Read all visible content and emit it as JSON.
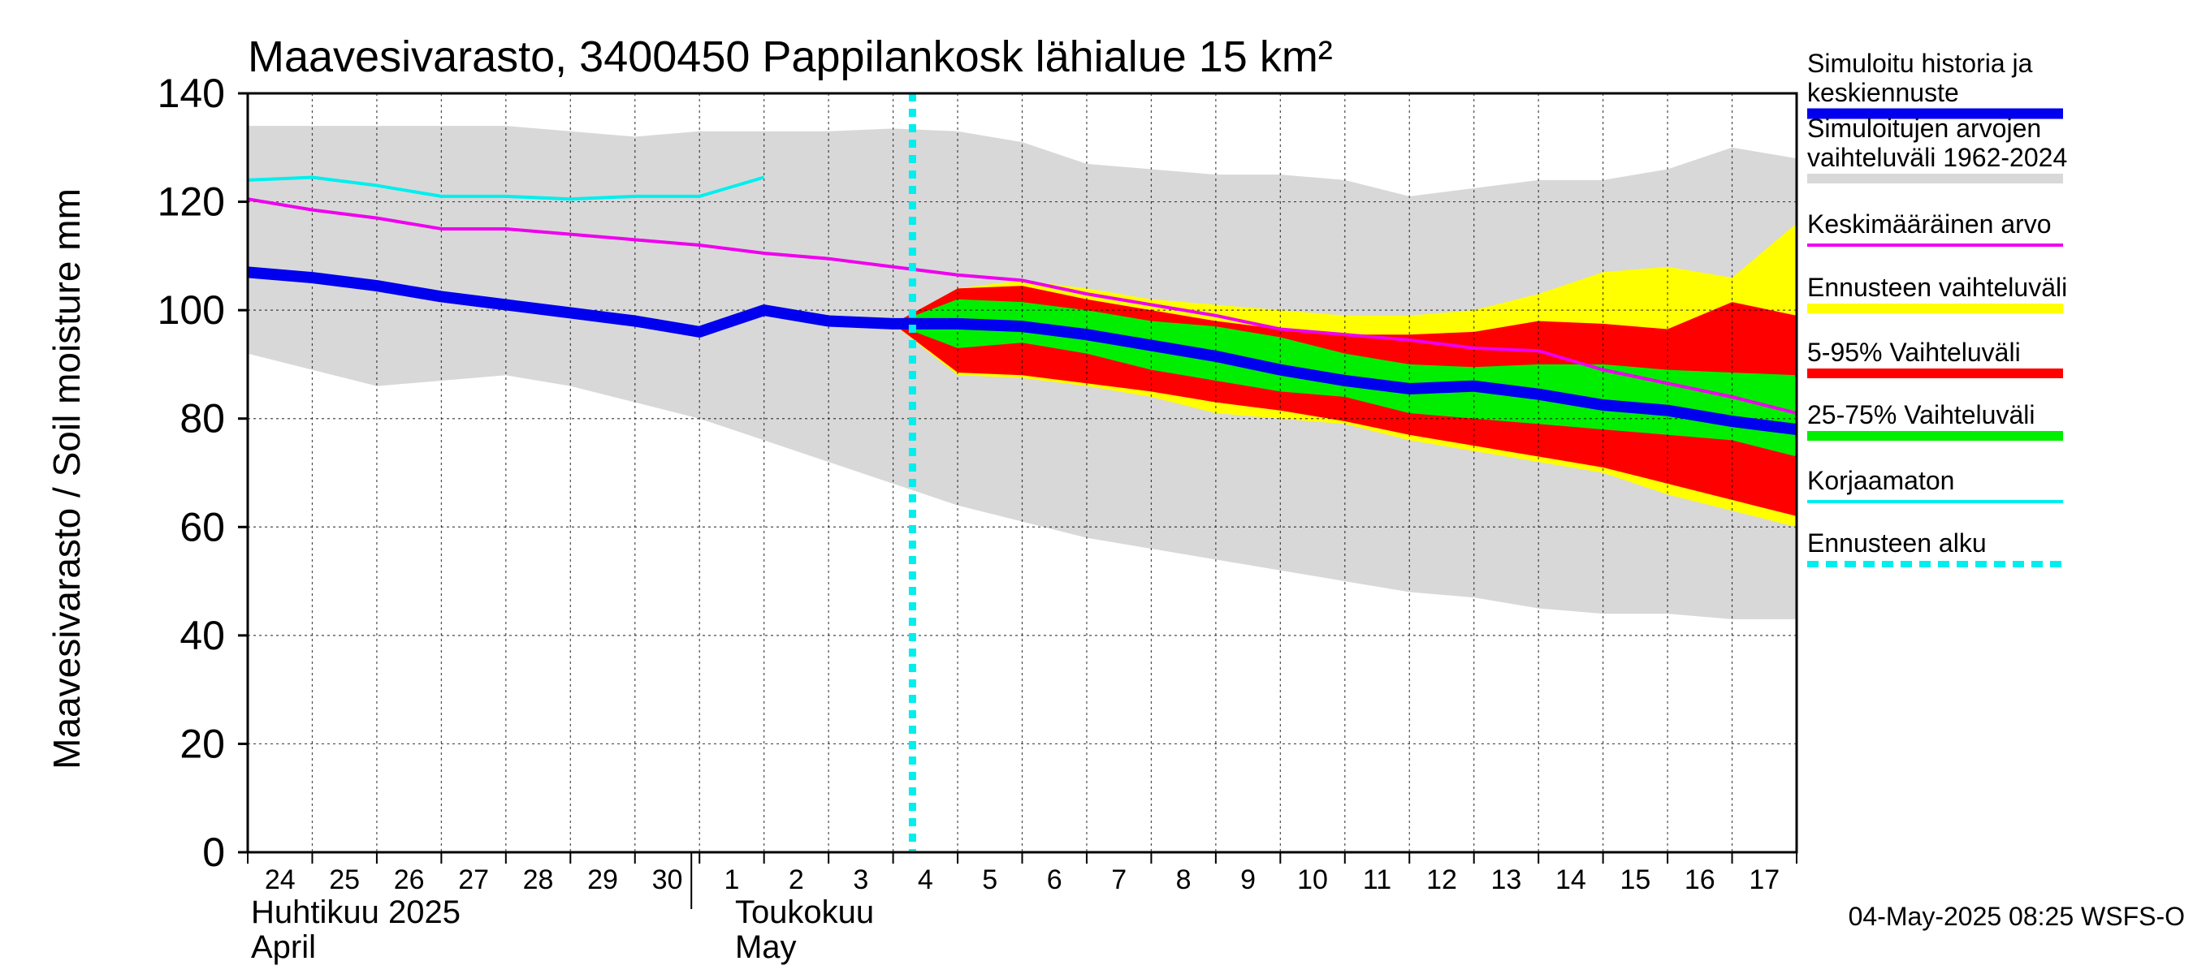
{
  "chart_data": {
    "type": "area",
    "title": "Maavesivarasto, 3400450 Pappilankosk lähialue 15 km²",
    "ylabel": "Maavesivarasto / Soil moisture   mm",
    "ylim": [
      0,
      140
    ],
    "yticks": [
      "0",
      "20",
      "40",
      "60",
      "80",
      "100",
      "120",
      "140"
    ],
    "x_days": [
      "24",
      "25",
      "26",
      "27",
      "28",
      "29",
      "30",
      "1",
      "2",
      "3",
      "4",
      "5",
      "6",
      "7",
      "8",
      "9",
      "10",
      "11",
      "12",
      "13",
      "14",
      "15",
      "16",
      "17"
    ],
    "months": [
      {
        "line1": "Huhtikuu  2025",
        "line2": "April",
        "start_index": 0
      },
      {
        "line1": "Toukokuu",
        "line2": "May",
        "start_index": 7.5
      }
    ],
    "forecast_start_index": 10.3,
    "colors": {
      "history_range": "#d8d8d8",
      "forecast_range": "#ffff00",
      "p5_95": "#ff0000",
      "p25_75": "#00ee00",
      "simulated": "#0000ee",
      "mean": "#ee00ee",
      "uncorrected": "#00eeee",
      "forecast_start": "#00eeee"
    },
    "series": {
      "history_range": {
        "x": [
          0,
          1,
          2,
          3,
          4,
          5,
          6,
          7,
          8,
          9,
          10,
          11,
          12,
          13,
          14,
          15,
          16,
          17,
          18,
          19,
          20,
          21,
          22,
          23,
          24
        ],
        "upper": [
          134,
          134,
          134,
          134,
          134,
          133,
          132,
          133,
          133,
          133,
          133.5,
          133,
          131,
          127,
          126,
          125,
          125,
          124,
          121,
          122.5,
          124,
          124,
          126,
          130,
          128
        ],
        "lower": [
          92,
          89,
          86,
          87,
          88,
          86,
          83,
          80,
          76,
          72,
          68,
          64,
          61,
          58,
          56,
          54,
          52,
          50,
          48,
          47,
          45,
          44,
          44,
          43,
          43
        ]
      },
      "forecast_range": {
        "x": [
          10,
          11,
          12,
          13,
          14,
          15,
          16,
          17,
          18,
          19,
          20,
          21,
          22,
          23,
          24
        ],
        "upper": [
          97.5,
          104,
          105.5,
          104,
          102,
          101,
          100,
          99,
          99,
          100,
          103,
          107,
          108,
          106,
          116
        ],
        "lower": [
          97.5,
          88,
          87.5,
          86,
          84,
          81,
          80,
          79,
          76,
          74,
          72,
          70,
          66,
          63,
          60
        ]
      },
      "p5_95": {
        "x": [
          10,
          11,
          12,
          13,
          14,
          15,
          16,
          17,
          18,
          19,
          20,
          21,
          22,
          23,
          24
        ],
        "upper": [
          97.5,
          104,
          104.5,
          102,
          100,
          98,
          96.5,
          95.5,
          95.5,
          96,
          98,
          97.5,
          96.5,
          101.5,
          99
        ],
        "lower": [
          97.5,
          88.5,
          88,
          86.5,
          85,
          83,
          81.5,
          79.5,
          77,
          75,
          73,
          71,
          68,
          65,
          62
        ]
      },
      "p25_75": {
        "x": [
          10,
          11,
          12,
          13,
          14,
          15,
          16,
          17,
          18,
          19,
          20,
          21,
          22,
          23,
          24
        ],
        "upper": [
          97.5,
          102,
          101.5,
          100,
          98,
          97,
          95,
          92,
          90,
          89.5,
          90,
          90,
          89,
          88.5,
          88
        ],
        "lower": [
          97.5,
          93,
          94,
          92,
          89,
          87,
          85,
          84,
          81,
          80,
          79,
          78,
          77,
          76,
          73
        ]
      },
      "simulated": {
        "x": [
          0,
          1,
          2,
          3,
          4,
          5,
          6,
          7,
          8,
          9,
          10,
          11,
          12,
          13,
          14,
          15,
          16,
          17,
          18,
          19,
          20,
          21,
          22,
          23,
          24
        ],
        "y": [
          107,
          106,
          104.5,
          102.5,
          101,
          99.5,
          98,
          96,
          100,
          98,
          97.5,
          97.5,
          97,
          95.5,
          93.5,
          91.5,
          89,
          87,
          85.5,
          86,
          84.5,
          82.5,
          81.5,
          79.5,
          78
        ]
      },
      "mean": {
        "x": [
          0,
          1,
          2,
          3,
          4,
          5,
          6,
          7,
          8,
          9,
          10,
          11,
          12,
          13,
          14,
          15,
          16,
          17,
          18,
          19,
          20,
          21,
          22,
          23,
          24
        ],
        "y": [
          120.5,
          118.5,
          117,
          115,
          115,
          114,
          113,
          112,
          110.5,
          109.5,
          108,
          106.5,
          105.5,
          103,
          101,
          99,
          96.5,
          95.5,
          94.5,
          93,
          92.5,
          89,
          86.5,
          84,
          81
        ]
      },
      "uncorrected": {
        "x": [
          0,
          1,
          2,
          3,
          4,
          5,
          6,
          7,
          8
        ],
        "y": [
          124,
          124.5,
          123,
          121,
          121,
          120.5,
          121,
          121,
          124.5
        ]
      }
    },
    "legend": [
      {
        "label": "Simuloitu historia ja keskiennuste",
        "line1": "Simuloitu historia ja",
        "line2": "keskiennuste",
        "color": "#0000ee",
        "style": "thick"
      },
      {
        "label": "Simuloitujen arvojen vaihteluväli 1962-2024",
        "line1": "Simuloitujen arvojen",
        "line2": "vaihteluväli 1962-2024",
        "color": "#d8d8d8",
        "style": "medium"
      },
      {
        "label": "Keskimääräinen arvo",
        "line1": "Keskimääräinen arvo",
        "line2": "",
        "color": "#ee00ee",
        "style": "thin"
      },
      {
        "label": "Ennusteen vaihteluväli",
        "line1": "Ennusteen vaihteluväli",
        "line2": "",
        "color": "#ffff00",
        "style": "medium"
      },
      {
        "label": "5-95% Vaihteluväli",
        "line1": "5-95% Vaihteluväli",
        "line2": "",
        "color": "#ff0000",
        "style": "medium"
      },
      {
        "label": "25-75% Vaihteluväli",
        "line1": "25-75% Vaihteluväli",
        "line2": "",
        "color": "#00ee00",
        "style": "medium"
      },
      {
        "label": "Korjaamaton",
        "line1": "Korjaamaton",
        "line2": "",
        "color": "#00eeee",
        "style": "thin"
      },
      {
        "label": "Ennusteen alku",
        "line1": "Ennusteen alku",
        "line2": "",
        "color": "#00eeee",
        "style": "dashed"
      }
    ]
  },
  "footer": "04-May-2025 08:25 WSFS-O"
}
